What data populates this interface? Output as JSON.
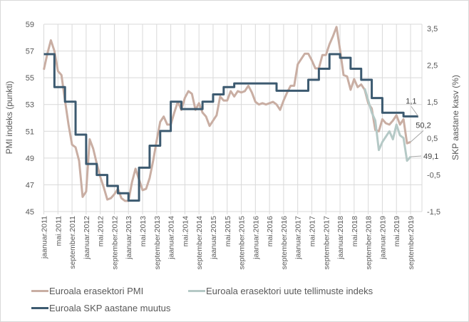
{
  "chart_data": {
    "type": "line",
    "title": "",
    "ylabel_left": "PMI indeks (punkti)",
    "ylabel_right": "SKP aastane kasv (%)",
    "ylim_left": [
      45,
      59
    ],
    "ylim_right": [
      -1.5,
      3.5
    ],
    "yticks_left": [
      "45",
      "47",
      "49",
      "51",
      "53",
      "55",
      "57",
      "59"
    ],
    "yticks_right": [
      "-1,5",
      "-0,5",
      "0,5",
      "1,5",
      "2,5",
      "3,5"
    ],
    "xticks": [
      "jaanuar.2011",
      "mai.2011",
      "september.2011",
      "jaanuar.2012",
      "mai.2012",
      "september.2012",
      "jaanuar.2013",
      "mai.2013",
      "september.2013",
      "jaanuar.2014",
      "mai.2014",
      "september.2014",
      "jaanuar.2015",
      "mai.2015",
      "september.2015",
      "jaanuar.2016",
      "mai.2016",
      "september.2016",
      "jaanuar.2017",
      "mai.2017",
      "september.2017",
      "jaanuar.2018",
      "mai.2018",
      "september.2018",
      "jaanuar.2019",
      "mai.2019",
      "september.2019"
    ],
    "x_start": "2011-01",
    "grid": true,
    "legend_position": "bottom",
    "series": [
      {
        "name": "Euroala erasektori PMI",
        "axis": "left",
        "color": "#c9aea3",
        "start": "2011-01",
        "values": [
          55.6,
          56.8,
          57.8,
          57.0,
          55.5,
          55.2,
          53.3,
          51.5,
          50.0,
          49.8,
          48.8,
          46.1,
          46.5,
          50.4,
          49.7,
          48.6,
          47.6,
          46.8,
          45.9,
          46.0,
          46.3,
          46.7,
          46.0,
          45.8,
          45.8,
          47.2,
          48.2,
          47.4,
          46.6,
          46.7,
          47.5,
          48.8,
          50.3,
          51.7,
          52.1,
          51.5,
          51.5,
          52.4,
          53.2,
          52.6,
          53.5,
          54.0,
          53.8,
          52.6,
          53.1,
          52.4,
          52.1,
          51.4,
          51.8,
          52.2,
          53.6,
          53.3,
          53.3,
          54.0,
          53.6,
          54.0,
          53.9,
          54.0,
          54.4,
          53.9,
          53.2,
          53.0,
          53.1,
          53.0,
          53.1,
          53.2,
          53.0,
          52.6,
          53.3,
          53.9,
          54.4,
          54.4,
          56.0,
          56.4,
          56.8,
          56.8,
          56.3,
          55.7,
          55.7,
          56.7,
          56.7,
          57.5,
          58.1,
          58.8,
          57.1,
          55.2,
          55.1,
          54.1,
          54.9,
          54.3,
          54.5,
          54.1,
          53.1,
          52.7,
          51.1,
          51.0,
          51.9,
          51.6,
          51.5,
          51.8,
          52.2,
          51.5,
          51.9,
          50.1,
          50.2
        ]
      },
      {
        "name": "Euroala erasektori uute tellimuste indeks",
        "axis": "left",
        "color": "#b5c9c6",
        "start": "2018-08",
        "values": [
          54.2,
          53.3,
          52.4,
          51.8,
          49.6,
          50.2,
          50.6,
          51.0,
          50.4,
          51.5,
          50.7,
          50.5,
          48.8,
          49.1
        ]
      },
      {
        "name": "Euroala SKP aastane muutus",
        "axis": "right",
        "color": "#3c5a70",
        "type": "step-quarterly",
        "start": "2011-01",
        "values": [
          2.8,
          1.9,
          1.5,
          0.6,
          -0.2,
          -0.5,
          -0.8,
          -1.0,
          -1.2,
          -0.3,
          0.3,
          0.7,
          1.5,
          1.3,
          1.3,
          1.5,
          1.7,
          1.9,
          2.0,
          2.0,
          2.0,
          2.0,
          1.8,
          1.8,
          1.8,
          2.1,
          2.4,
          2.8,
          2.7,
          2.4,
          2.1,
          1.6,
          1.2,
          1.2,
          1.1,
          1.1
        ],
        "last_label": "1,1"
      }
    ],
    "annotations": [
      {
        "text": "1,1",
        "series": "Euroala SKP aastane muutus"
      },
      {
        "text": "50,2",
        "series": "Euroala erasektori PMI"
      },
      {
        "text": "49,1",
        "series": "Euroala erasektori uute tellimuste indeks"
      }
    ]
  },
  "legend": {
    "items": [
      {
        "label": "Euroala erasektori PMI",
        "color": "#c9aea3"
      },
      {
        "label": "Euroala erasektori uute tellimuste indeks",
        "color": "#b5c9c6"
      },
      {
        "label": "Euroala SKP aastane muutus",
        "color": "#3c5a70"
      }
    ]
  }
}
